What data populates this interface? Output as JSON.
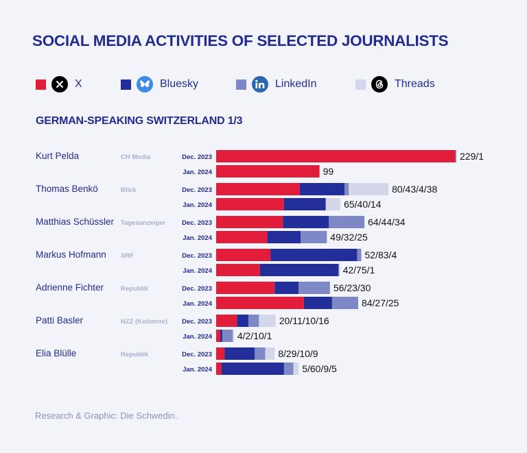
{
  "title": "SOCIAL MEDIA ACTIVITIES OF SELECTED JOURNALISTS",
  "subtitle": "GERMAN-SPEAKING SWITZERLAND  1/3",
  "footer": "Research & Graphic: Die Schwedin.",
  "legend": [
    {
      "label": "X",
      "color": "#e11d3a",
      "icon": "x-logo-icon"
    },
    {
      "label": "Bluesky",
      "color": "#222f9a",
      "icon": "bluesky-butterfly-icon"
    },
    {
      "label": "LinkedIn",
      "color": "#7f88c6",
      "icon": "linkedin-logo-icon"
    },
    {
      "label": "Threads",
      "color": "#d4d7ea",
      "icon": "threads-logo-icon"
    }
  ],
  "chart_data": {
    "type": "bar",
    "orientation": "horizontal",
    "stacked": true,
    "title": "SOCIAL MEDIA ACTIVITIES OF SELECTED JOURNALISTS",
    "subtitle": "GERMAN-SPEAKING SWITZERLAND  1/3",
    "series_names": [
      "X",
      "Bluesky",
      "LinkedIn",
      "Threads"
    ],
    "colors": [
      "#e11d3a",
      "#222f9a",
      "#7f88c6",
      "#d4d7ea"
    ],
    "xlim": [
      0,
      230
    ],
    "journalists": [
      {
        "name": "Kurt Pelda",
        "outlet": "CH Media",
        "rows": [
          {
            "period": "Dec. 2023",
            "values": [
              229,
              0,
              1,
              0
            ],
            "label": "229/1"
          },
          {
            "period": "Jan. 2024",
            "values": [
              99,
              0,
              0,
              0
            ],
            "label": "99"
          }
        ]
      },
      {
        "name": "Thomas Benkö",
        "outlet": "Blick",
        "rows": [
          {
            "period": "Dec. 2023",
            "values": [
              80,
              43,
              4,
              38
            ],
            "label": "80/43/4/38"
          },
          {
            "period": "Jan. 2024",
            "values": [
              65,
              40,
              0,
              14
            ],
            "label": "65/40/14"
          }
        ]
      },
      {
        "name": "Matthias Schüssler",
        "outlet": "Tagesanzeiger",
        "rows": [
          {
            "period": "Dec. 2023",
            "values": [
              64,
              44,
              34,
              0
            ],
            "label": "64/44/34"
          },
          {
            "period": "Jan. 2024",
            "values": [
              49,
              32,
              25,
              0
            ],
            "label": "49/32/25"
          }
        ]
      },
      {
        "name": "Markus Hofmann",
        "outlet": "SRF",
        "rows": [
          {
            "period": "Dec. 2023",
            "values": [
              52,
              83,
              4,
              0
            ],
            "label": "52/83/4"
          },
          {
            "period": "Jan. 2024",
            "values": [
              42,
              75,
              1,
              0
            ],
            "label": "42/75/1"
          }
        ]
      },
      {
        "name": "Adrienne Fichter",
        "outlet": "Republik",
        "rows": [
          {
            "period": "Dec. 2023",
            "values": [
              56,
              23,
              30,
              0
            ],
            "label": "56/23/30"
          },
          {
            "period": "Jan. 2024",
            "values": [
              84,
              27,
              25,
              0
            ],
            "label": "84/27/25"
          }
        ]
      },
      {
        "name": "Patti Basler",
        "outlet": "NZZ (Kolumne)",
        "rows": [
          {
            "period": "Dec. 2023",
            "values": [
              20,
              11,
              10,
              16
            ],
            "label": "20/11/10/16"
          },
          {
            "period": "Jan. 2024",
            "values": [
              4,
              2,
              10,
              1
            ],
            "label": "4/2/10/1"
          }
        ]
      },
      {
        "name": "Elia Blülle",
        "outlet": "Republik",
        "rows": [
          {
            "period": "Dec. 2023",
            "values": [
              8,
              29,
              10,
              9
            ],
            "label": "8/29/10/9"
          },
          {
            "period": "Jan. 2024",
            "values": [
              5,
              60,
              9,
              5
            ],
            "label": "5/60/9/5"
          }
        ]
      }
    ]
  }
}
